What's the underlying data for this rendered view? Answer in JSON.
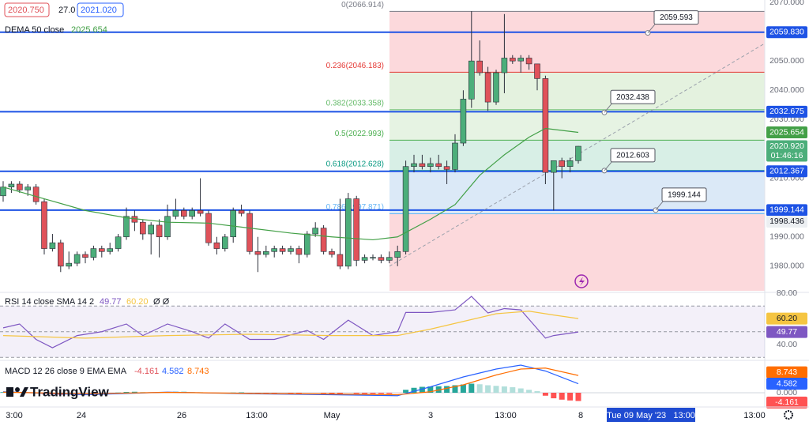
{
  "quotes": [
    "2020.750",
    "27.0",
    "2021.020"
  ],
  "logo": "TradingView",
  "time_axis": {
    "labels": [
      "3:00",
      "24",
      "26",
      "13:00",
      "May",
      "3",
      "13:00",
      "8",
      "13:00"
    ],
    "crosshair_label": "Tue 09 May '23   13:00"
  },
  "chart_data": [
    {
      "type": "candlestick",
      "ylim": [
        1971.6,
        2070.8
      ],
      "yticks": [
        {
          "value": 2070,
          "label": "2070.000"
        },
        {
          "value": 2050,
          "label": "2050.000"
        },
        {
          "value": 2040,
          "label": "2040.000"
        },
        {
          "value": 2030,
          "label": "2030.000"
        },
        {
          "value": 2010,
          "label": "2010.000"
        },
        {
          "value": 1990,
          "label": "1990.000"
        },
        {
          "value": 1980,
          "label": "1980.000"
        }
      ],
      "up_color": "#4cae7a",
      "down_color": "#e0525a",
      "ohlc": [
        [
          2004,
          2009,
          2002,
          2007
        ],
        [
          2007,
          2009,
          2005,
          2008
        ],
        [
          2008,
          2009,
          2005,
          2006
        ],
        [
          2006,
          2008,
          2004,
          2007
        ],
        [
          2007,
          2008,
          2001,
          2002
        ],
        [
          2002,
          2003,
          1984,
          1986
        ],
        [
          1986,
          1991,
          1985,
          1988
        ],
        [
          1988,
          1989,
          1978,
          1980
        ],
        [
          1980,
          1985,
          1979,
          1981
        ],
        [
          1981,
          1985,
          1980,
          1984
        ],
        [
          1984,
          1985,
          1981,
          1983
        ],
        [
          1983,
          1987,
          1982,
          1986
        ],
        [
          1986,
          1987,
          1983,
          1985
        ],
        [
          1985,
          1988,
          1984,
          1986
        ],
        [
          1986,
          1991,
          1985,
          1990
        ],
        [
          1990,
          2000,
          1989,
          1997
        ],
        [
          1997,
          1999,
          1992,
          1995
        ],
        [
          1995,
          1996,
          1989,
          1991
        ],
        [
          1991,
          1995,
          1984,
          1994
        ],
        [
          1994,
          1996,
          1983,
          1990
        ],
        [
          1990,
          2001,
          1989,
          1997
        ],
        [
          1997,
          2003,
          1996,
          1999
        ],
        [
          1999,
          2000,
          1996,
          1997
        ],
        [
          1997,
          2000,
          1996,
          1999
        ],
        [
          1999,
          2010,
          1997,
          1998
        ],
        [
          1998,
          1999,
          1987,
          1988
        ],
        [
          1988,
          1990,
          1984,
          1986
        ],
        [
          1986,
          1991,
          1985,
          1990
        ],
        [
          1990,
          2000,
          1988,
          1999
        ],
        [
          1999,
          2001,
          1997,
          1998
        ],
        [
          1998,
          1999,
          1984,
          1985
        ],
        [
          1985,
          1990,
          1978,
          1984
        ],
        [
          1984,
          1987,
          1983,
          1985
        ],
        [
          1985,
          1987,
          1983,
          1986
        ],
        [
          1986,
          1987,
          1984,
          1985
        ],
        [
          1985,
          1987,
          1984,
          1986
        ],
        [
          1986,
          1987,
          1981,
          1984
        ],
        [
          1984,
          1992,
          1983,
          1991
        ],
        [
          1991,
          1995,
          1990,
          1993
        ],
        [
          1993,
          1994,
          1984,
          1985
        ],
        [
          1985,
          1986,
          1983,
          1984
        ],
        [
          1984,
          2003,
          1979,
          1980
        ],
        [
          1980,
          2005,
          1979,
          2003
        ],
        [
          2003,
          2004,
          1980,
          1982
        ],
        [
          1982,
          1984,
          1981,
          1983
        ],
        [
          1983,
          1984,
          1982,
          1983
        ],
        [
          1983,
          1984,
          1981,
          1982
        ],
        [
          1982,
          1985,
          1981,
          1983
        ],
        [
          1983,
          1987,
          1980,
          1985
        ],
        [
          1985,
          2016,
          1984,
          2014
        ],
        [
          2014,
          2018,
          2012,
          2015
        ],
        [
          2015,
          2018,
          2013,
          2014
        ],
        [
          2014,
          2017,
          2012,
          2015
        ],
        [
          2015,
          2018,
          2013,
          2014
        ],
        [
          2014,
          2016,
          2008,
          2013
        ],
        [
          2013,
          2025,
          2012,
          2022
        ],
        [
          2022,
          2040,
          2021,
          2037
        ],
        [
          2037,
          2067,
          2034,
          2050
        ],
        [
          2050,
          2057,
          2045,
          2046
        ],
        [
          2046,
          2048,
          2033,
          2036
        ],
        [
          2036,
          2047,
          2035,
          2046
        ],
        [
          2046,
          2066,
          2039,
          2051
        ],
        [
          2051,
          2052,
          2049,
          2050
        ],
        [
          2050,
          2052,
          2046,
          2051
        ],
        [
          2051,
          2052,
          2047,
          2049
        ],
        [
          2049,
          2049,
          2040,
          2044
        ],
        [
          2044,
          2045,
          2008,
          2012
        ],
        [
          2012,
          2016,
          1999,
          2016
        ],
        [
          2016,
          2017,
          2010,
          2014
        ],
        [
          2014,
          2017,
          2012,
          2016
        ],
        [
          2016,
          2021,
          2015,
          2020.92
        ]
      ],
      "dema": {
        "label": "DEMA 50 close",
        "color": "#43a047",
        "x": [
          0,
          5,
          10,
          15,
          20,
          25,
          30,
          35,
          40,
          45,
          48,
          52,
          55,
          58,
          61,
          64,
          66,
          70
        ],
        "values": [
          2007,
          2003,
          1999,
          1996.5,
          1995,
          1994.7,
          1993,
          1991.3,
          1990,
          1989,
          1990,
          1996,
          2001,
          2011,
          2018,
          2024,
          2027,
          2025.654
        ]
      },
      "fib_levels": [
        {
          "label": "0(2066.914)",
          "price": 2066.914,
          "color": "#787b86"
        },
        {
          "label": "0.236(2046.183)",
          "price": 2046.183,
          "color": "#e53935"
        },
        {
          "label": "0.382(2033.358)",
          "price": 2033.358,
          "color": "#66bb6a"
        },
        {
          "label": "0.5(2022.993)",
          "price": 2022.993,
          "color": "#4caf50"
        },
        {
          "label": "0.618(2012.628)",
          "price": 2012.628,
          "color": "#089981"
        },
        {
          "label": "0.786(1997.871)",
          "price": 1997.871,
          "color": "#64b5f6"
        }
      ],
      "fib_zone_colors": [
        "#fcd9dc",
        "#e4f2df",
        "#e6f3e3",
        "#d8efe6",
        "#dbe9f7",
        "#fcd9dc"
      ],
      "levels": [
        {
          "value": 2059.83,
          "label": "2059.830"
        },
        {
          "value": 2032.675,
          "label": "2032.675"
        },
        {
          "value": 2012.367,
          "label": "2012.367"
        },
        {
          "value": 1999.144,
          "label": "1999.144"
        }
      ],
      "level_color": "#1e53e5",
      "callouts": [
        2059.593,
        2032.438,
        2012.603,
        1999.144
      ],
      "trendline": [
        1980,
        2056
      ],
      "price_label": {
        "value": 2020.92,
        "label": "2020.920",
        "countdown": "01:46:16"
      },
      "extra_labels": [
        {
          "value": 1998.436,
          "label": "1998.436"
        }
      ]
    },
    {
      "type": "line",
      "label": "RSI 14 close SMA 14 2",
      "extra": "Ø Ø",
      "ylim": [
        28.3,
        80.6
      ],
      "yticks": [
        {
          "value": 80,
          "label": "80.00"
        },
        {
          "value": 40,
          "label": "40.00"
        }
      ],
      "bands": [
        70,
        30
      ],
      "mid": 50,
      "series": [
        {
          "color": "#7e57c2",
          "x": [
            0,
            2,
            4,
            6,
            9,
            12,
            15,
            17,
            20,
            23,
            25,
            27,
            30,
            33,
            37,
            39,
            42,
            45,
            48,
            49,
            52,
            55,
            57,
            59,
            61,
            63,
            66,
            67,
            70
          ],
          "values": [
            53,
            56,
            44,
            37.5,
            47,
            50,
            56,
            47,
            56,
            50,
            45,
            56,
            44,
            44,
            51,
            44,
            59,
            47,
            50,
            65,
            65,
            67,
            77.5,
            64.6,
            68,
            67,
            45,
            47,
            49.77
          ]
        },
        {
          "color": "#f5c542",
          "x": [
            0,
            10,
            20,
            30,
            40,
            48,
            52,
            56,
            60,
            64,
            67,
            70
          ],
          "values": [
            47,
            45,
            47,
            48,
            47,
            47,
            52,
            58,
            64,
            66,
            63,
            60.2
          ],
          "value_labels": [
            null,
            null,
            null,
            null,
            null,
            null,
            null,
            null,
            null,
            null,
            null,
            "60.20"
          ]
        }
      ]
    },
    {
      "type": "macd",
      "label": "MACD 12 26 close 9 EMA EMA",
      "ylim": [
        -7.2,
        15.6
      ],
      "yticks": [
        {
          "value": 0,
          "label": "0.000"
        }
      ],
      "histogram": {
        "values": [
          0.3,
          0.4,
          0.3,
          0.1,
          -0.2,
          -0.6,
          -0.8,
          -1,
          -0.9,
          -0.7,
          -0.5,
          -0.3,
          -0.2,
          -0.1,
          0.1,
          0.4,
          0.5,
          0.4,
          0.3,
          0.2,
          0.4,
          0.5,
          0.5,
          0.4,
          0.3,
          -0.1,
          -0.3,
          -0.2,
          0.1,
          0.2,
          -0.2,
          -0.5,
          -0.6,
          -0.6,
          -0.5,
          -0.5,
          -0.5,
          -0.3,
          -0.2,
          -0.3,
          -0.4,
          -0.6,
          -0.2,
          -0.4,
          -0.5,
          -0.5,
          -0.5,
          -0.5,
          -0.3,
          1.5,
          2.5,
          3,
          3.2,
          3.3,
          3.4,
          3.8,
          4.2,
          4.6,
          4.3,
          3.8,
          3.5,
          3.2,
          2.8,
          2.2,
          1.5,
          0.8,
          -1.5,
          -2.8,
          -3.5,
          -3.9,
          -4.161
        ],
        "colors": [
          "#26a69a",
          "#b2dfdb",
          "#ff5252",
          "#ffcdd2"
        ]
      },
      "series": [
        {
          "color": "#2962ff",
          "x": [
            0,
            10,
            20,
            30,
            40,
            48,
            52,
            56,
            60,
            63,
            66,
            70
          ],
          "values": [
            0.5,
            -1,
            0.3,
            -0.5,
            -1,
            -1.5,
            3,
            8,
            12,
            14,
            11,
            4.582
          ]
        },
        {
          "color": "#ff6d00",
          "x": [
            0,
            10,
            20,
            30,
            40,
            48,
            52,
            56,
            60,
            63,
            66,
            70
          ],
          "values": [
            0.3,
            -0.5,
            0.2,
            -0.3,
            -0.6,
            -1,
            0.5,
            4,
            9,
            12,
            12.5,
            8.743
          ]
        }
      ]
    }
  ]
}
